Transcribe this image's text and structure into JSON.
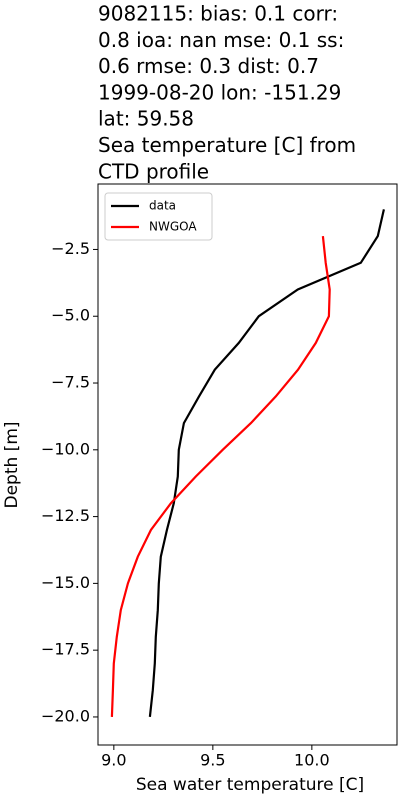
{
  "chart_data": {
    "type": "line",
    "title": [
      "9082115: bias: 0.1  corr:",
      "0.8  ioa: nan  mse: 0.1  ss:",
      "0.6  rmse: 0.3  dist: 0.7",
      "1999-08-20 lon: -151.29",
      "lat: 59.58",
      "Sea temperature [C] from",
      "CTD profile"
    ],
    "xlabel": "Sea water temperature [C]",
    "ylabel": "Depth [m]",
    "xlim": [
      8.92,
      10.43
    ],
    "ylim": [
      -21.05,
      -0.05
    ],
    "xticks": [
      {
        "value": 9,
        "label": "9.0"
      },
      9.5,
      {
        "value": 10,
        "label": "10.0"
      }
    ],
    "yticks": [
      {
        "value": -2.5,
        "label": "−2.5"
      },
      {
        "value": -5,
        "label": "−5.0"
      },
      {
        "value": -7.5,
        "label": "−7.5"
      },
      {
        "value": -10,
        "label": "−10.0"
      },
      {
        "value": -12.5,
        "label": "−12.5"
      },
      {
        "value": -15,
        "label": "−15.0"
      },
      {
        "value": -17.5,
        "label": "−17.5"
      },
      {
        "value": -20,
        "label": "−20.0"
      }
    ],
    "legend": "upper left",
    "series": [
      {
        "name": "data",
        "color": "#000000",
        "x": [
          10.364,
          10.333,
          10.247,
          9.929,
          9.732,
          9.631,
          9.51,
          9.43,
          9.354,
          9.328,
          9.323,
          9.303,
          9.268,
          9.237,
          9.227,
          9.222,
          9.212,
          9.207,
          9.197,
          9.182
        ],
        "values": [
          -1,
          -2,
          -3,
          -4,
          -5,
          -6,
          -7,
          -8,
          -9,
          -10,
          -11,
          -12,
          -13,
          -14,
          -15,
          -16,
          -17,
          -18,
          -19,
          -20
        ]
      },
      {
        "name": "NWGOA",
        "color": "#ff0000",
        "x": [
          10.056,
          10.07,
          10.09,
          10.086,
          10.02,
          9.93,
          9.818,
          9.692,
          9.55,
          9.414,
          9.288,
          9.187,
          9.121,
          9.071,
          9.035,
          9.015,
          9.0,
          8.995,
          8.99
        ],
        "values": [
          -2,
          -3,
          -4,
          -5,
          -6,
          -7,
          -8,
          -9,
          -10,
          -11,
          -12,
          -13,
          -14,
          -15,
          -16,
          -17,
          -18,
          -19,
          -20
        ]
      }
    ]
  }
}
